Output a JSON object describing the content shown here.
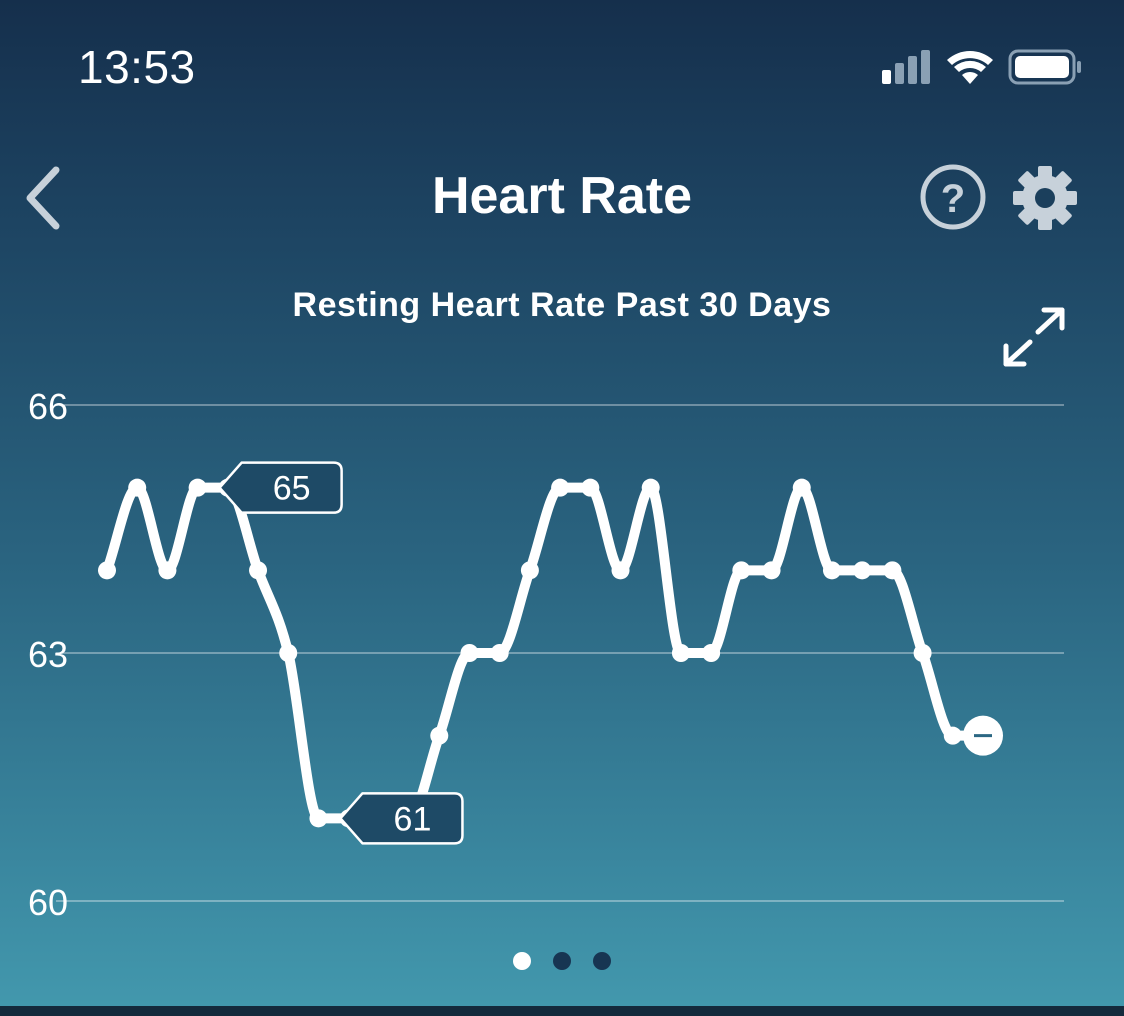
{
  "status_bar": {
    "time": "13:53",
    "icons": [
      "cellular-signal-icon",
      "wifi-icon",
      "battery-icon"
    ]
  },
  "nav": {
    "title": "Heart Rate",
    "back_icon": "chevron-left-icon",
    "help_icon": "question-circle-icon",
    "settings_icon": "gear-icon"
  },
  "chart_data": {
    "type": "line",
    "title": "Resting Heart Rate Past 30 Days",
    "ylim": [
      60,
      66
    ],
    "yticks": [
      "66",
      "63",
      "60"
    ],
    "y_tick_values": [
      66,
      63,
      60
    ],
    "x": [
      1,
      2,
      3,
      4,
      5,
      6,
      7,
      8,
      9,
      10,
      11,
      12,
      13,
      14,
      15,
      16,
      17,
      18,
      19,
      20,
      21,
      22,
      23,
      24,
      25,
      26,
      27,
      28,
      29,
      30
    ],
    "values": [
      64,
      65,
      64,
      65,
      65,
      64,
      63,
      61,
      61,
      61,
      61,
      62,
      63,
      63,
      64,
      65,
      65,
      64,
      65,
      63,
      63,
      64,
      64,
      65,
      64,
      64,
      64,
      63,
      62,
      62
    ],
    "annotations": [
      {
        "label": "65",
        "x": 4,
        "y": 65
      },
      {
        "label": "61",
        "x": 8,
        "y": 61
      }
    ],
    "grid": true,
    "line_color": "#ffffff"
  },
  "pager": {
    "count": 3,
    "active": 0
  },
  "colors": {
    "bg_top": "#152f4c",
    "bg_bottom": "#4399ae",
    "callout_fill": "#1e4a66",
    "pager_inactive": "#173552"
  }
}
